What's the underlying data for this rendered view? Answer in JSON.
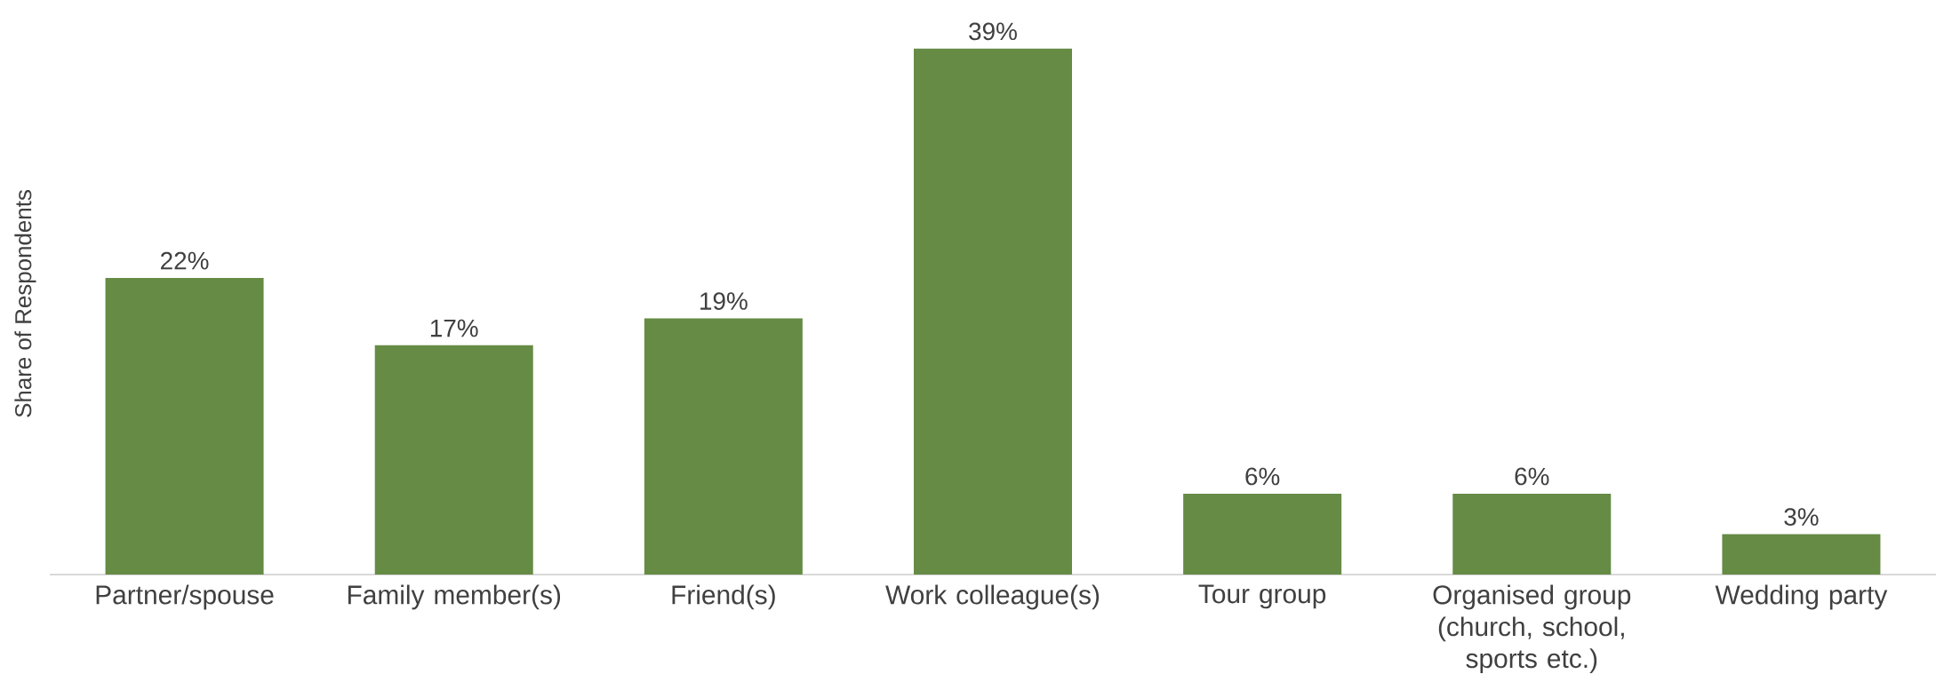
{
  "chart_data": {
    "type": "bar",
    "ylabel": "Share of Respondents",
    "categories": [
      "Partner/spouse",
      "Family member(s)",
      "Friend(s)",
      "Work colleague(s)",
      "Tour group",
      "Organised group (church, school, sports etc.)",
      "Wedding party"
    ],
    "values": [
      22,
      17,
      19,
      39,
      6,
      6,
      3
    ],
    "value_labels": [
      "22%",
      "17%",
      "19%",
      "39%",
      "6%",
      "6%",
      "3%"
    ],
    "color": "#658b45"
  }
}
